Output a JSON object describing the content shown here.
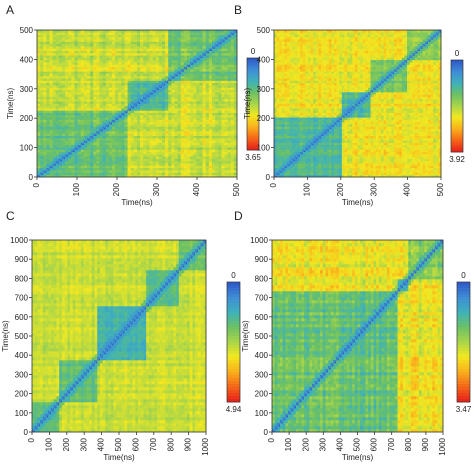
{
  "chart_data": [
    {
      "type": "heatmap",
      "panel_label": "A",
      "xlabel": "Time(ns)",
      "ylabel": "Time(ns)",
      "xlim": [
        0,
        500
      ],
      "ylim": [
        0,
        500
      ],
      "x_ticks": [
        "0",
        "100",
        "200",
        "300",
        "400",
        "500"
      ],
      "y_ticks": [
        "0",
        "100",
        "200",
        "300",
        "400",
        "500"
      ],
      "colorbar": {
        "max_label": "0",
        "min_label": "3.65",
        "min": 0,
        "max": 3.65
      },
      "blocks": [
        [
          0,
          230
        ],
        [
          230,
          330
        ],
        [
          330,
          500
        ]
      ],
      "description_values": {
        "block_rmsd": [
          1.2,
          1.0,
          1.3
        ],
        "cross_rmsd": 1.9
      }
    },
    {
      "type": "heatmap",
      "panel_label": "B",
      "xlabel": "Time(ns)",
      "ylabel": "Time(ns)",
      "xlim": [
        0,
        500
      ],
      "ylim": [
        0,
        500
      ],
      "x_ticks": [
        "0",
        "100",
        "200",
        "300",
        "400",
        "500"
      ],
      "y_ticks": [
        "0",
        "100",
        "200",
        "300",
        "400",
        "500"
      ],
      "colorbar": {
        "max_label": "0",
        "min_label": "3.92",
        "min": 0,
        "max": 3.92
      },
      "blocks": [
        [
          0,
          200
        ],
        [
          200,
          290
        ],
        [
          290,
          400
        ],
        [
          400,
          500
        ]
      ],
      "description_values": {
        "block_rmsd": [
          1.0,
          1.1,
          1.4,
          1.6
        ],
        "cross_rmsd": 2.3
      }
    },
    {
      "type": "heatmap",
      "panel_label": "C",
      "xlabel": "Time(ns)",
      "ylabel": "Time(ns)",
      "xlim": [
        0,
        1000
      ],
      "ylim": [
        0,
        1000
      ],
      "x_ticks": [
        "0",
        "100",
        "200",
        "300",
        "400",
        "500",
        "600",
        "700",
        "800",
        "900",
        "1000"
      ],
      "y_ticks": [
        "0",
        "100",
        "200",
        "300",
        "400",
        "500",
        "600",
        "700",
        "800",
        "900",
        "1000"
      ],
      "colorbar": {
        "max_label": "0",
        "min_label": "4.94",
        "min": 0,
        "max": 4.94
      },
      "blocks": [
        [
          0,
          150
        ],
        [
          150,
          380
        ],
        [
          380,
          650
        ],
        [
          650,
          850
        ],
        [
          850,
          1000
        ]
      ],
      "description_values": {
        "block_rmsd": [
          1.6,
          1.5,
          1.2,
          1.5,
          1.7
        ],
        "cross_rmsd": 2.6
      }
    },
    {
      "type": "heatmap",
      "panel_label": "D",
      "xlabel": "Time(ns)",
      "ylabel": "Time(ns)",
      "xlim": [
        0,
        1000
      ],
      "ylim": [
        0,
        1000
      ],
      "x_ticks": [
        "0",
        "100",
        "200",
        "300",
        "400",
        "500",
        "600",
        "700",
        "800",
        "900",
        "1000"
      ],
      "y_ticks": [
        "0",
        "100",
        "200",
        "300",
        "400",
        "500",
        "600",
        "700",
        "800",
        "900",
        "1000"
      ],
      "colorbar": {
        "max_label": "0",
        "min_label": "3.47",
        "min": 0,
        "max": 3.47
      },
      "blocks": [
        [
          0,
          730
        ],
        [
          730,
          800
        ],
        [
          800,
          1000
        ]
      ],
      "description_values": {
        "block_rmsd": [
          1.1,
          1.0,
          1.3
        ],
        "cross_rmsd": 2.0
      }
    }
  ],
  "colormap": [
    "#e8251c",
    "#f56a18",
    "#f9b31c",
    "#f2e820",
    "#a9d54a",
    "#6cc163",
    "#3fb2b8",
    "#3f8fd6",
    "#2f5cc9"
  ]
}
